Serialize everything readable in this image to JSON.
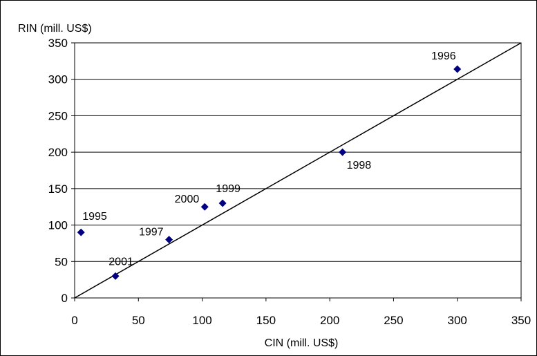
{
  "chart_data": {
    "type": "scatter",
    "title": "",
    "xlabel": "CIN (mill. US$)",
    "ylabel": "RIN (mill. US$)",
    "xlim": [
      0,
      350
    ],
    "ylim": [
      0,
      350
    ],
    "xticks": [
      0,
      50,
      100,
      150,
      200,
      250,
      300,
      350
    ],
    "yticks": [
      0,
      50,
      100,
      150,
      200,
      250,
      300,
      350
    ],
    "grid": "horizontal",
    "marker_color": "#000080",
    "reference_line": {
      "from": [
        0,
        0
      ],
      "to": [
        350,
        350
      ]
    },
    "points": [
      {
        "label": "1995",
        "x": 5,
        "y": 90,
        "label_pos": "above-right"
      },
      {
        "label": "1996",
        "x": 300,
        "y": 314,
        "label_pos": "above-left"
      },
      {
        "label": "1997",
        "x": 74,
        "y": 80,
        "label_pos": "left"
      },
      {
        "label": "1998",
        "x": 210,
        "y": 200,
        "label_pos": "below-right"
      },
      {
        "label": "1999",
        "x": 116,
        "y": 130,
        "label_pos": "above"
      },
      {
        "label": "2000",
        "x": 102,
        "y": 125,
        "label_pos": "left"
      },
      {
        "label": "2001",
        "x": 32,
        "y": 30,
        "label_pos": "above"
      }
    ]
  }
}
